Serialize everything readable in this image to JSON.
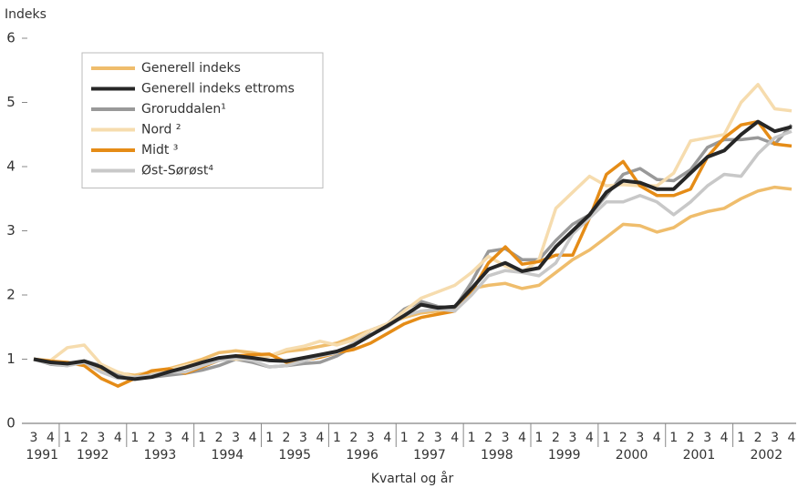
{
  "chart_data": {
    "type": "line",
    "y_label": "Indeks",
    "x_label": "Kvartal og år",
    "categories": [
      "3",
      "4",
      "1",
      "2",
      "3",
      "4",
      "1",
      "2",
      "3",
      "4",
      "1",
      "2",
      "3",
      "4",
      "1",
      "2",
      "3",
      "4",
      "1",
      "2",
      "3",
      "4",
      "1",
      "2",
      "3",
      "4",
      "1",
      "2",
      "3",
      "4",
      "1",
      "2",
      "3",
      "4",
      "1",
      "2",
      "3",
      "4",
      "1",
      "2",
      "3",
      "4",
      "1",
      "2",
      "3",
      "4"
    ],
    "years": [
      "1991",
      "1992",
      "1993",
      "1994",
      "1995",
      "1996",
      "1997",
      "1998",
      "1999",
      "2000",
      "2001",
      "2002"
    ],
    "ylim": [
      0,
      6
    ],
    "yticks": [
      0,
      1,
      2,
      3,
      4,
      5,
      6
    ],
    "grid": false,
    "series": [
      {
        "name": "Generell indeks",
        "color": "#efbd6c",
        "values": [
          1.0,
          0.97,
          0.93,
          0.95,
          0.85,
          0.78,
          0.75,
          0.8,
          0.85,
          0.92,
          1.0,
          1.1,
          1.13,
          1.1,
          1.05,
          1.12,
          1.15,
          1.2,
          1.25,
          1.35,
          1.45,
          1.55,
          1.65,
          1.72,
          1.75,
          1.78,
          2.1,
          2.15,
          2.18,
          2.1,
          2.15,
          2.35,
          2.55,
          2.7,
          2.9,
          3.1,
          3.08,
          2.98,
          3.05,
          3.22,
          3.3,
          3.35,
          3.5,
          3.62,
          3.68,
          3.65
        ]
      },
      {
        "name": "Generell indeks ettroms",
        "color": "#262626",
        "values": [
          1.0,
          0.95,
          0.93,
          0.97,
          0.88,
          0.72,
          0.69,
          0.72,
          0.8,
          0.87,
          0.95,
          1.02,
          1.05,
          1.02,
          0.98,
          0.97,
          1.02,
          1.07,
          1.12,
          1.22,
          1.37,
          1.52,
          1.68,
          1.85,
          1.8,
          1.82,
          2.1,
          2.4,
          2.5,
          2.37,
          2.42,
          2.75,
          3.0,
          3.25,
          3.6,
          3.78,
          3.75,
          3.65,
          3.65,
          3.9,
          4.15,
          4.25,
          4.5,
          4.7,
          4.55,
          4.62
        ]
      },
      {
        "name": "Groruddalen¹",
        "color": "#999999",
        "values": [
          1.0,
          0.92,
          0.9,
          0.97,
          0.9,
          0.75,
          0.7,
          0.72,
          0.75,
          0.78,
          0.83,
          0.9,
          1.0,
          0.95,
          0.88,
          0.9,
          0.93,
          0.95,
          1.05,
          1.2,
          1.45,
          1.55,
          1.78,
          1.9,
          1.82,
          1.8,
          2.2,
          2.68,
          2.72,
          2.55,
          2.55,
          2.85,
          3.1,
          3.25,
          3.55,
          3.88,
          3.97,
          3.8,
          3.78,
          3.95,
          4.3,
          4.42,
          4.42,
          4.45,
          4.35,
          4.65
        ]
      },
      {
        "name": "Nord ²",
        "color": "#f6dcae",
        "values": [
          1.0,
          0.98,
          1.18,
          1.22,
          0.92,
          0.8,
          0.72,
          0.76,
          0.83,
          0.9,
          0.95,
          1.02,
          1.0,
          1.0,
          1.05,
          1.15,
          1.2,
          1.28,
          1.22,
          1.3,
          1.45,
          1.55,
          1.75,
          1.95,
          2.05,
          2.15,
          2.35,
          2.6,
          2.45,
          2.35,
          2.55,
          3.35,
          3.6,
          3.85,
          3.7,
          3.72,
          3.7,
          3.7,
          3.9,
          4.4,
          4.45,
          4.5,
          5.0,
          5.28,
          4.9,
          4.87
        ]
      },
      {
        "name": "Midt ³",
        "color": "#e58c17",
        "values": [
          1.0,
          0.97,
          0.95,
          0.9,
          0.7,
          0.58,
          0.7,
          0.82,
          0.85,
          0.78,
          0.88,
          0.98,
          1.05,
          1.07,
          1.08,
          0.95,
          0.98,
          1.03,
          1.1,
          1.15,
          1.25,
          1.4,
          1.55,
          1.65,
          1.7,
          1.75,
          2.05,
          2.5,
          2.75,
          2.48,
          2.52,
          2.62,
          2.62,
          3.2,
          3.88,
          4.08,
          3.7,
          3.55,
          3.55,
          3.65,
          4.15,
          4.45,
          4.65,
          4.7,
          4.35,
          4.32
        ]
      },
      {
        "name": "Øst-Sørøst⁴",
        "color": "#c8c8c8",
        "values": [
          1.0,
          0.93,
          0.9,
          0.95,
          0.8,
          0.7,
          0.72,
          0.75,
          0.8,
          0.8,
          0.9,
          0.98,
          1.02,
          0.98,
          0.88,
          0.9,
          0.97,
          1.05,
          1.1,
          1.25,
          1.38,
          1.5,
          1.68,
          1.75,
          1.78,
          1.75,
          2.0,
          2.3,
          2.38,
          2.35,
          2.3,
          2.5,
          2.95,
          3.2,
          3.45,
          3.45,
          3.55,
          3.45,
          3.25,
          3.45,
          3.7,
          3.88,
          3.85,
          4.2,
          4.45,
          4.55
        ]
      }
    ]
  }
}
